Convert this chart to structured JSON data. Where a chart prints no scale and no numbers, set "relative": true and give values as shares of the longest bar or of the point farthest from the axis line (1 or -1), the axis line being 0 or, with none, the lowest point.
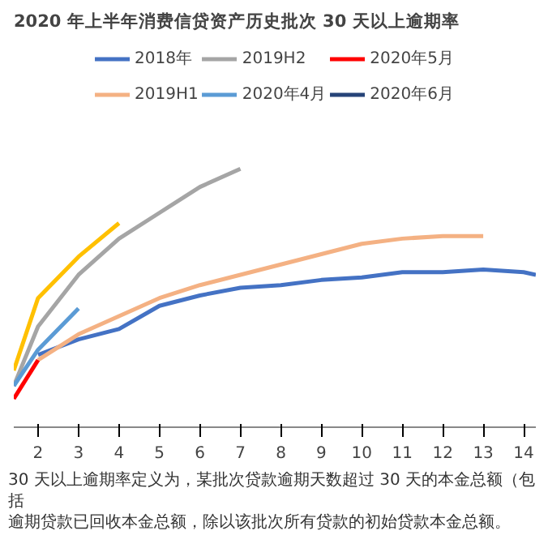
{
  "chart_data": {
    "type": "line",
    "title": "2020 年上半年消费信贷资产历史批次 30 天以上逾期率",
    "relative": true,
    "legend": "top",
    "xlim": [
      1.4,
      14.3
    ],
    "xticks": [
      2,
      3,
      4,
      5,
      6,
      7,
      8,
      9,
      10,
      11,
      12,
      13,
      14
    ],
    "series": [
      {
        "name": "2018年",
        "color": "#4472c4",
        "x": [
          2,
          3,
          4,
          5,
          6,
          7,
          8,
          9,
          10,
          11,
          12,
          13,
          14,
          14.3
        ],
        "values": [
          0.28,
          0.34,
          0.38,
          0.47,
          0.51,
          0.54,
          0.55,
          0.57,
          0.58,
          0.6,
          0.6,
          0.61,
          0.6,
          0.59
        ]
      },
      {
        "name": "2019H1",
        "color": "#f4b183",
        "x": [
          2,
          3,
          4,
          5,
          6,
          7,
          8,
          9,
          10,
          11,
          12,
          13
        ],
        "values": [
          0.26,
          0.36,
          0.43,
          0.5,
          0.55,
          0.59,
          0.63,
          0.67,
          0.71,
          0.73,
          0.74,
          0.74
        ]
      },
      {
        "name": "2019H2",
        "color": "#a5a5a5",
        "x": [
          1.4,
          2,
          3,
          4,
          5,
          6,
          7
        ],
        "values": [
          0.16,
          0.39,
          0.59,
          0.73,
          0.83,
          0.93,
          1
        ]
      },
      {
        "color": "#ffc000",
        "x": [
          1.4,
          2,
          3,
          4
        ],
        "values": [
          0.22,
          0.5,
          0.66,
          0.79
        ]
      },
      {
        "name": "2020年4月",
        "color": "#5b9bd5",
        "x": [
          1.4,
          2,
          3
        ],
        "values": [
          0.16,
          0.3,
          0.46
        ]
      },
      {
        "name": "2020年5月",
        "color": "#ff0000",
        "x": [
          1.4,
          2
        ],
        "values": [
          0.11,
          0.26
        ]
      },
      {
        "name": "2020年6月",
        "color": "#264478"
      }
    ],
    "annotations": [
      "30 天以上逾期率定义为，某批次贷款逾期天数超过 30 天的本金总额（包括",
      "逾期贷款已回收本金总额，除以该批次所有贷款的初始贷款本金总额。"
    ]
  }
}
